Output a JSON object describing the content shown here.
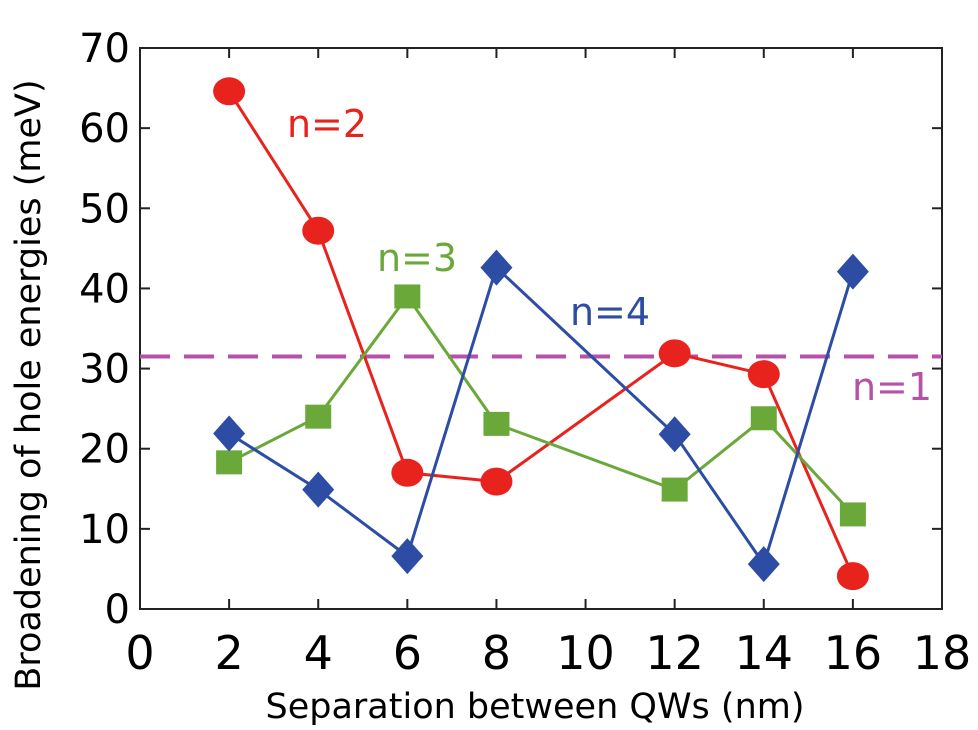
{
  "chart_data": {
    "type": "line",
    "title": "",
    "xlabel": "Separation between QWs (nm)",
    "ylabel": "Broadening of hole energies (meV)",
    "xlim": [
      0,
      18
    ],
    "ylim": [
      0,
      70
    ],
    "xticks": [
      0,
      2,
      4,
      6,
      8,
      10,
      12,
      14,
      16,
      18
    ],
    "yticks": [
      0,
      10,
      20,
      30,
      40,
      50,
      60,
      70
    ],
    "grid": false,
    "series": [
      {
        "name": "n=2",
        "label": "n=2",
        "color": "#e8231e",
        "marker": "circle",
        "x": [
          2,
          4,
          6,
          8,
          12,
          14,
          16
        ],
        "y": [
          64.6,
          47.2,
          17.0,
          15.9,
          31.9,
          29.3,
          4.1
        ]
      },
      {
        "name": "n=3",
        "label": "n=3",
        "color": "#6aa83a",
        "marker": "square",
        "x": [
          2,
          4,
          6,
          8,
          12,
          14,
          16
        ],
        "y": [
          18.3,
          24.0,
          39.0,
          23.1,
          14.9,
          23.8,
          11.8
        ]
      },
      {
        "name": "n=4",
        "label": "n=4",
        "color": "#2c4da3",
        "marker": "diamond",
        "x": [
          2,
          4,
          6,
          8,
          12,
          14,
          16
        ],
        "y": [
          21.9,
          14.9,
          6.6,
          42.6,
          21.8,
          5.6,
          42.1
        ]
      }
    ],
    "reference_lines": [
      {
        "name": "n=1",
        "label": "n=1",
        "color": "#b552a8",
        "style": "dashed",
        "y": 31.5
      }
    ]
  }
}
